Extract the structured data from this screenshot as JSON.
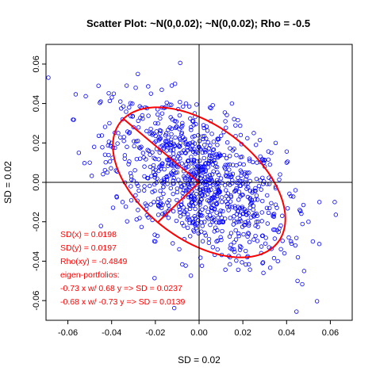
{
  "chart_data": {
    "type": "scatter",
    "title": "Scatter Plot: ~N(0,0.02); ~N(0,0.02); Rho = -0.5",
    "xlabel": "SD = 0.02",
    "ylabel": "SD = 0.02",
    "xlim": [
      -0.07,
      0.07
    ],
    "ylim": [
      -0.07,
      0.07
    ],
    "xticks": [
      -0.06,
      -0.04,
      -0.02,
      0.0,
      0.02,
      0.04,
      0.06
    ],
    "yticks": [
      -0.06,
      -0.04,
      -0.02,
      0.0,
      0.02,
      0.04,
      0.06
    ],
    "xtick_labels": [
      "-0.06",
      "-0.04",
      "-0.02",
      "0.00",
      "0.02",
      "0.04",
      "0.06"
    ],
    "ytick_labels": [
      "-0.06",
      "-0.04",
      "-0.02",
      "0.00",
      "0.02",
      "0.04",
      "0.06"
    ],
    "grid": false,
    "reference_lines": {
      "x": 0,
      "y": 0
    },
    "colors": {
      "points": "#0000ff",
      "ellipse": "#ff0000",
      "annotation": "#ff0000",
      "axes": "#000000"
    },
    "ellipse": {
      "center": [
        0,
        0
      ],
      "axis1_direction": [
        -0.73,
        0.68
      ],
      "axis1_sd": 0.0237,
      "axis2_direction": [
        -0.68,
        -0.73
      ],
      "axis2_sd": 0.0139,
      "scale": 2
    },
    "annotations": [
      "SD(x) = 0.0198",
      "SD(y) = 0.0197",
      "Rho(xy) = -0.4849",
      "eigen-portfolios:",
      "-0.73 x w/ 0.68 y => SD = 0.0237",
      "-0.68 x w/ -0.73 y => SD = 0.0139"
    ],
    "series": [
      {
        "n_points": 1000,
        "sd_x": 0.0198,
        "sd_y": 0.0197,
        "rho": -0.4849,
        "points": [
          [
            -0.055,
            0.015
          ],
          [
            -0.05,
            0.01
          ],
          [
            -0.046,
            0.049
          ],
          [
            -0.045,
            0.041
          ],
          [
            -0.043,
            0.014
          ],
          [
            -0.042,
            0.005
          ],
          [
            -0.041,
            0.03
          ],
          [
            -0.04,
            0.02
          ],
          [
            -0.039,
            0.045
          ],
          [
            -0.038,
            0.006
          ],
          [
            -0.037,
            0.025
          ],
          [
            -0.036,
            0.041
          ],
          [
            -0.035,
            0.032
          ],
          [
            -0.034,
            0.012
          ],
          [
            -0.033,
            0.018
          ],
          [
            -0.032,
            0.038
          ],
          [
            -0.031,
            0.003
          ],
          [
            -0.03,
            0.028
          ],
          [
            -0.029,
            0.048
          ],
          [
            -0.028,
            0.021
          ],
          [
            -0.027,
            0.012
          ],
          [
            -0.026,
            0.034
          ],
          [
            -0.025,
            -0.002
          ],
          [
            -0.024,
            0.026
          ],
          [
            -0.023,
            0.016
          ],
          [
            -0.022,
            0.045
          ],
          [
            -0.021,
            0.007
          ],
          [
            -0.02,
            0.03
          ],
          [
            -0.019,
            -0.01
          ],
          [
            -0.018,
            0.022
          ],
          [
            -0.017,
            0.038
          ],
          [
            -0.016,
            0.002
          ],
          [
            -0.015,
            0.019
          ],
          [
            -0.014,
            -0.018
          ],
          [
            -0.013,
            0.033
          ],
          [
            -0.012,
            0.011
          ],
          [
            -0.011,
            0.05
          ],
          [
            -0.01,
            -0.005
          ],
          [
            -0.009,
            0.027
          ],
          [
            -0.008,
            0.015
          ],
          [
            -0.007,
            -0.022
          ],
          [
            -0.006,
            0.04
          ],
          [
            -0.005,
            0.008
          ],
          [
            -0.004,
            -0.012
          ],
          [
            -0.003,
            0.023
          ],
          [
            -0.002,
            0.035
          ],
          [
            -0.001,
            -0.003
          ],
          [
            0.0,
            0.018
          ],
          [
            0.001,
            -0.025
          ],
          [
            0.002,
            0.029
          ],
          [
            0.003,
            0.006
          ],
          [
            0.004,
            -0.015
          ],
          [
            0.005,
            0.038
          ],
          [
            0.006,
            -0.008
          ],
          [
            0.007,
            0.014
          ],
          [
            0.008,
            -0.03
          ],
          [
            0.009,
            0.022
          ],
          [
            0.01,
            0.002
          ],
          [
            0.011,
            -0.02
          ],
          [
            0.012,
            0.031
          ],
          [
            0.013,
            -0.011
          ],
          [
            0.014,
            0.009
          ],
          [
            0.015,
            -0.034
          ],
          [
            0.016,
            0.017
          ],
          [
            0.017,
            -0.004
          ],
          [
            0.018,
            -0.026
          ],
          [
            0.019,
            0.024
          ],
          [
            0.02,
            -0.016
          ],
          [
            0.021,
            0.005
          ],
          [
            0.022,
            -0.038
          ],
          [
            0.023,
            0.012
          ],
          [
            0.024,
            -0.009
          ],
          [
            0.025,
            -0.029
          ],
          [
            0.026,
            0.019
          ],
          [
            0.027,
            -0.02
          ],
          [
            0.028,
            0.001
          ],
          [
            0.029,
            -0.041
          ],
          [
            0.03,
            0.008
          ],
          [
            0.031,
            -0.013
          ],
          [
            0.032,
            -0.033
          ],
          [
            0.033,
            0.015
          ],
          [
            0.034,
            -0.024
          ],
          [
            0.035,
            -0.003
          ],
          [
            0.036,
            -0.04
          ],
          [
            0.037,
            0.004
          ],
          [
            0.038,
            -0.017
          ],
          [
            0.039,
            -0.036
          ],
          [
            0.04,
            0.01
          ],
          [
            0.041,
            -0.028
          ],
          [
            0.042,
            -0.007
          ],
          [
            0.044,
            -0.032
          ],
          [
            0.046,
            -0.014
          ],
          [
            0.048,
            -0.045
          ],
          [
            0.05,
            -0.02
          ],
          [
            0.052,
            -0.03
          ],
          [
            0.055,
            -0.01
          ],
          [
            0.062,
            -0.01
          ],
          [
            -0.048,
            0.018
          ],
          [
            -0.028,
            0.055
          ],
          [
            0.045,
            -0.05
          ],
          [
            0.015,
            0.04
          ],
          [
            -0.02,
            -0.03
          ],
          [
            0.025,
            0.025
          ],
          [
            -0.035,
            -0.01
          ],
          [
            0.035,
            0.02
          ]
        ]
      }
    ]
  }
}
